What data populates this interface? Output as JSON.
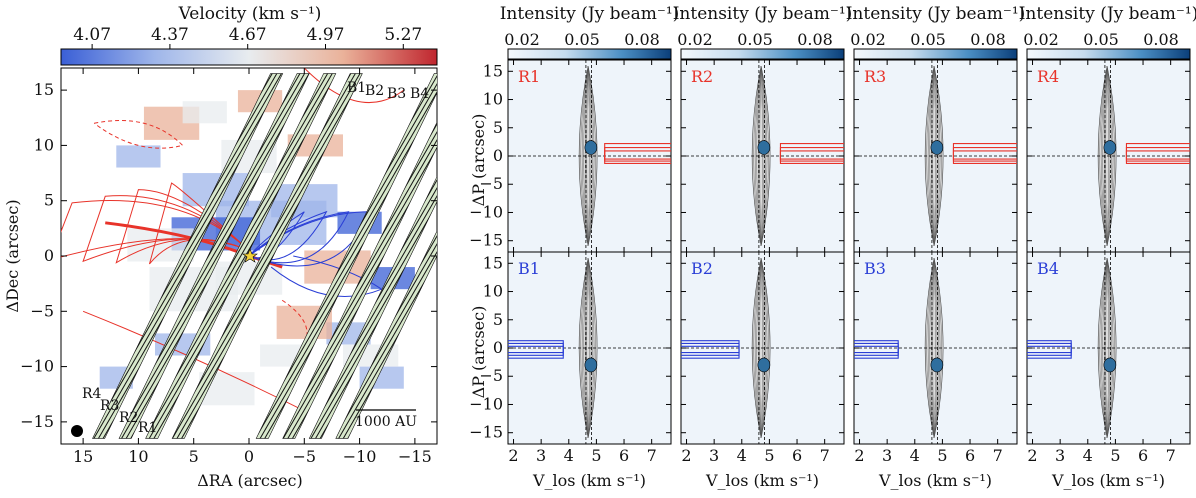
{
  "left_panel": {
    "colorbar_label": "Velocity (km s⁻¹)",
    "colorbar_ticks": [
      "4.07",
      "4.37",
      "4.67",
      "4.97",
      "5.27"
    ],
    "colorbar_colors": [
      "#3a5fd6",
      "#9fb6ea",
      "#e8ecef",
      "#eab29a",
      "#c0262f"
    ],
    "xlabel": "ΔRA (arcsec)",
    "ylabel": "ΔDec (arcsec)",
    "xticks": [
      "15",
      "10",
      "5",
      "0",
      "−5",
      "−10",
      "−15"
    ],
    "yticks": [
      "15",
      "10",
      "5",
      "0",
      "−5",
      "−10",
      "−15"
    ],
    "scalebar_label": "1000 AU",
    "cut_labels_red": [
      "R4",
      "R3",
      "R2",
      "R1"
    ],
    "cut_labels_blue": [
      "B1",
      "B2",
      "B3",
      "B4"
    ],
    "red_color": "#e8332a",
    "blue_color": "#2b3fd6"
  },
  "pv_panels": {
    "colorbar_label": "Intensity (Jy beam⁻¹)",
    "colorbar_ticks": [
      "0.02",
      "0.05",
      "0.08"
    ],
    "xlabel": "V_los (km s⁻¹)",
    "ylabel": "ΔP (arcsec)",
    "xticks": [
      "2",
      "3",
      "4",
      "5",
      "6",
      "7"
    ],
    "yticks": [
      "15",
      "10",
      "5",
      "0",
      "−5",
      "−10",
      "−15"
    ],
    "top_row": [
      "R1",
      "R2",
      "R3",
      "R4"
    ],
    "bottom_row": [
      "B1",
      "B2",
      "B3",
      "B4"
    ]
  },
  "chart_data": [
    {
      "type": "heatmap",
      "title": "Velocity (km s⁻¹)",
      "xlabel": "ΔRA (arcsec)",
      "ylabel": "ΔDec (arcsec)",
      "xlim": [
        17,
        -17
      ],
      "ylim": [
        -17,
        17
      ],
      "colorbar_range": [
        3.95,
        5.4
      ],
      "colorbar_ticks": [
        4.07,
        4.37,
        4.67,
        4.97,
        5.27
      ]
    },
    {
      "type": "heatmap",
      "title": "Intensity (Jy beam⁻¹)",
      "panels": [
        "R1",
        "R2",
        "R3",
        "R4",
        "B1",
        "B2",
        "B3",
        "B4"
      ],
      "xlabel": "V_los (km s⁻¹)",
      "ylabel": "ΔP (arcsec)",
      "xlim": [
        1.8,
        7.7
      ],
      "ylim": [
        -17,
        17
      ],
      "colorbar_ticks": [
        0.02,
        0.05,
        0.08
      ]
    }
  ]
}
